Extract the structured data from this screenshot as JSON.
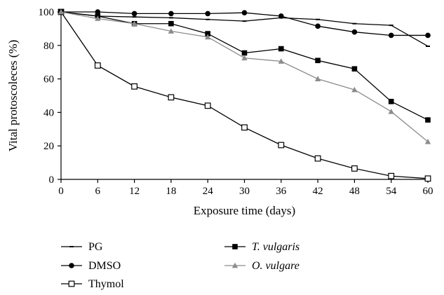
{
  "chart_data": {
    "type": "line",
    "xlabel": "Exposure time (days)",
    "ylabel": "Vital protoscoleces (%)",
    "xlim": [
      0,
      60
    ],
    "ylim": [
      0,
      100
    ],
    "x_ticks": [
      0,
      6,
      12,
      18,
      24,
      30,
      36,
      42,
      48,
      54,
      60
    ],
    "y_ticks": [
      0,
      20,
      40,
      60,
      80,
      100
    ],
    "grid": false,
    "legend_position": "bottom",
    "x": [
      0,
      6,
      12,
      18,
      24,
      30,
      36,
      42,
      48,
      54,
      60
    ],
    "series": [
      {
        "name": "PG",
        "marker": "dash",
        "color": "#000000",
        "italic": false,
        "values": [
          100,
          97.5,
          97,
          96.5,
          95.5,
          94.5,
          96.5,
          95.5,
          93,
          92,
          79.5
        ]
      },
      {
        "name": "DMSO",
        "marker": "circle",
        "color": "#000000",
        "italic": false,
        "values": [
          100,
          100,
          99,
          99,
          99,
          99.5,
          97.5,
          91.5,
          88,
          86,
          86
        ]
      },
      {
        "name": "Thymol",
        "marker": "open-square",
        "color": "#000000",
        "italic": false,
        "values": [
          100,
          68,
          55.5,
          49,
          44,
          31,
          20.5,
          12.5,
          6.5,
          2,
          0.5
        ]
      },
      {
        "name": "T. vulgaris",
        "marker": "filled-square",
        "color": "#000000",
        "italic": true,
        "values": [
          100,
          97.5,
          93,
          93,
          87,
          75.5,
          78,
          71,
          66,
          46.5,
          35.5
        ]
      },
      {
        "name": "O. vulgare",
        "marker": "triangle",
        "color": "#8c8c8c",
        "italic": true,
        "values": [
          100,
          96,
          93,
          88.5,
          85,
          72.5,
          70.5,
          60,
          53.5,
          40.5,
          22.5
        ]
      }
    ]
  }
}
